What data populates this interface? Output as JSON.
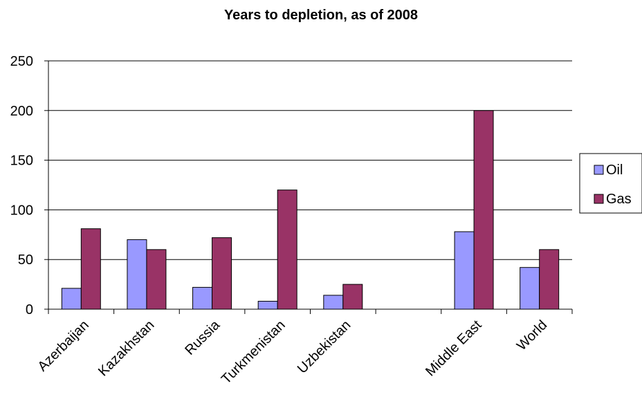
{
  "chart_data": {
    "type": "bar",
    "title": "Years to depletion, as of 2008",
    "xlabel": "",
    "ylabel": "",
    "categories": [
      "Azerbaijan",
      "Kazakhstan",
      "Russia",
      "Turkmenistan",
      "Uzbekistan",
      "",
      "Middle East",
      "World"
    ],
    "series": [
      {
        "name": "Oil",
        "color": "#9999ff",
        "values": [
          21,
          70,
          22,
          8,
          14,
          null,
          78,
          42
        ]
      },
      {
        "name": "Gas",
        "color": "#993366",
        "values": [
          81,
          60,
          72,
          120,
          25,
          null,
          200,
          60
        ]
      }
    ],
    "ylim": [
      0,
      250
    ],
    "yticks": [
      0,
      50,
      100,
      150,
      200,
      250
    ],
    "grid": true,
    "legend_position": "right"
  }
}
